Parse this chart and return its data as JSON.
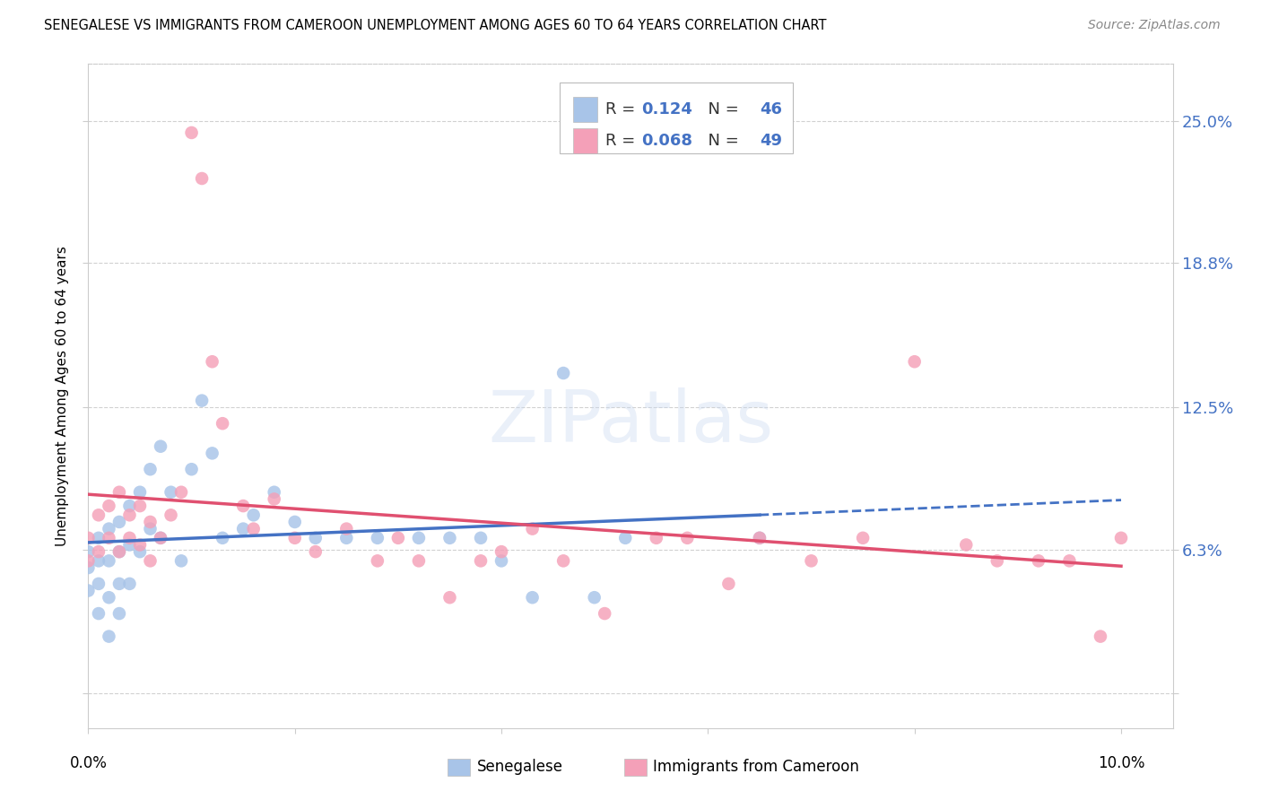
{
  "title": "SENEGALESE VS IMMIGRANTS FROM CAMEROON UNEMPLOYMENT AMONG AGES 60 TO 64 YEARS CORRELATION CHART",
  "source": "Source: ZipAtlas.com",
  "ylabel": "Unemployment Among Ages 60 to 64 years",
  "xlim": [
    0.0,
    0.105
  ],
  "ylim": [
    -0.015,
    0.275
  ],
  "ytick_vals": [
    0.0,
    0.063,
    0.125,
    0.188,
    0.25
  ],
  "ytick_labels": [
    "",
    "6.3%",
    "12.5%",
    "18.8%",
    "25.0%"
  ],
  "xtick_vals": [
    0.0,
    0.02,
    0.04,
    0.06,
    0.08,
    0.1
  ],
  "xtick_labels": [
    "0.0%",
    "",
    "",
    "",
    "",
    "10.0%"
  ],
  "legend_label1": "Senegalese",
  "legend_label2": "Immigrants from Cameroon",
  "color_blue": "#a8c4e8",
  "color_pink": "#f4a0b8",
  "line_blue": "#4472c4",
  "line_pink": "#e05070",
  "background": "#ffffff",
  "grid_color": "#cccccc",
  "blue_x": [
    0.0,
    0.0,
    0.0,
    0.001,
    0.001,
    0.001,
    0.001,
    0.002,
    0.002,
    0.002,
    0.002,
    0.003,
    0.003,
    0.003,
    0.003,
    0.004,
    0.004,
    0.004,
    0.005,
    0.005,
    0.006,
    0.006,
    0.007,
    0.007,
    0.008,
    0.009,
    0.01,
    0.011,
    0.012,
    0.013,
    0.015,
    0.016,
    0.018,
    0.02,
    0.022,
    0.025,
    0.028,
    0.032,
    0.035,
    0.038,
    0.04,
    0.043,
    0.046,
    0.049,
    0.052,
    0.065
  ],
  "blue_y": [
    0.062,
    0.055,
    0.045,
    0.068,
    0.058,
    0.048,
    0.035,
    0.072,
    0.058,
    0.042,
    0.025,
    0.075,
    0.062,
    0.048,
    0.035,
    0.082,
    0.065,
    0.048,
    0.088,
    0.062,
    0.098,
    0.072,
    0.108,
    0.068,
    0.088,
    0.058,
    0.098,
    0.128,
    0.105,
    0.068,
    0.072,
    0.078,
    0.088,
    0.075,
    0.068,
    0.068,
    0.068,
    0.068,
    0.068,
    0.068,
    0.058,
    0.042,
    0.14,
    0.042,
    0.068,
    0.068
  ],
  "pink_x": [
    0.0,
    0.0,
    0.001,
    0.001,
    0.002,
    0.002,
    0.003,
    0.003,
    0.004,
    0.004,
    0.005,
    0.005,
    0.006,
    0.006,
    0.007,
    0.008,
    0.009,
    0.01,
    0.011,
    0.012,
    0.013,
    0.015,
    0.016,
    0.018,
    0.02,
    0.022,
    0.025,
    0.028,
    0.03,
    0.032,
    0.035,
    0.038,
    0.04,
    0.043,
    0.046,
    0.05,
    0.055,
    0.058,
    0.062,
    0.065,
    0.07,
    0.075,
    0.08,
    0.085,
    0.088,
    0.092,
    0.095,
    0.098,
    0.1
  ],
  "pink_y": [
    0.068,
    0.058,
    0.078,
    0.062,
    0.082,
    0.068,
    0.088,
    0.062,
    0.078,
    0.068,
    0.082,
    0.065,
    0.075,
    0.058,
    0.068,
    0.078,
    0.088,
    0.245,
    0.225,
    0.145,
    0.118,
    0.082,
    0.072,
    0.085,
    0.068,
    0.062,
    0.072,
    0.058,
    0.068,
    0.058,
    0.042,
    0.058,
    0.062,
    0.072,
    0.058,
    0.035,
    0.068,
    0.068,
    0.048,
    0.068,
    0.058,
    0.068,
    0.145,
    0.065,
    0.058,
    0.058,
    0.058,
    0.025,
    0.068
  ]
}
